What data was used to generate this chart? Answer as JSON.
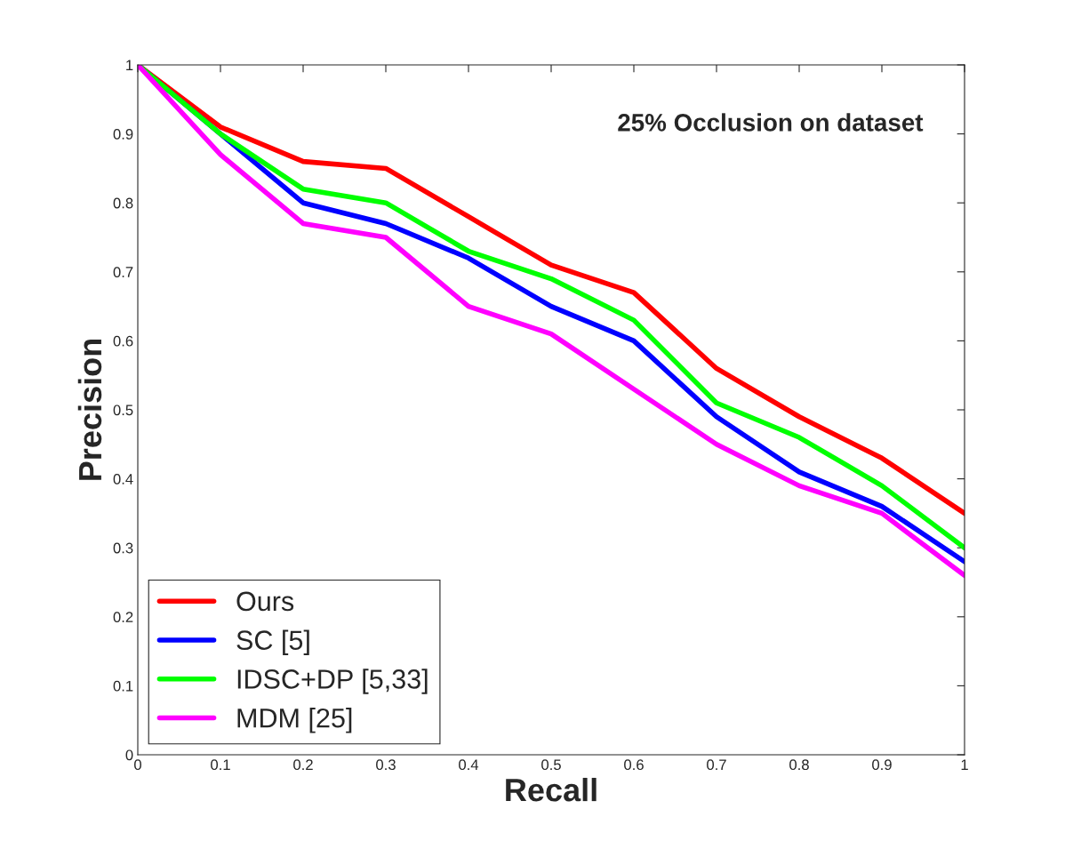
{
  "chart_data": {
    "type": "line",
    "title": "25% Occlusion on dataset",
    "xlabel": "Recall",
    "ylabel": "Precision",
    "x": [
      0,
      0.1,
      0.2,
      0.3,
      0.4,
      0.5,
      0.6,
      0.7,
      0.8,
      0.9,
      1
    ],
    "series": [
      {
        "name": "Ours",
        "color": "#ff0000",
        "values": [
          1,
          0.91,
          0.86,
          0.85,
          0.78,
          0.71,
          0.67,
          0.56,
          0.49,
          0.43,
          0.35
        ]
      },
      {
        "name": "SC [5]",
        "color": "#0000ff",
        "values": [
          1,
          0.9,
          0.8,
          0.77,
          0.72,
          0.65,
          0.6,
          0.49,
          0.41,
          0.36,
          0.28
        ]
      },
      {
        "name": "IDSC+DP [5,33]",
        "color": "#00ff00",
        "values": [
          1,
          0.9,
          0.82,
          0.8,
          0.73,
          0.69,
          0.63,
          0.51,
          0.46,
          0.39,
          0.3
        ]
      },
      {
        "name": "MDM [25]",
        "color": "#ff00ff",
        "values": [
          1,
          0.87,
          0.77,
          0.75,
          0.65,
          0.61,
          0.53,
          0.45,
          0.39,
          0.35,
          0.26
        ]
      }
    ],
    "xlim": [
      0,
      1
    ],
    "ylim": [
      0,
      1
    ],
    "xticks": [
      0,
      0.1,
      0.2,
      0.3,
      0.4,
      0.5,
      0.6,
      0.7,
      0.8,
      0.9,
      1
    ],
    "yticks": [
      0,
      0.1,
      0.2,
      0.3,
      0.4,
      0.5,
      0.6,
      0.7,
      0.8,
      0.9,
      1
    ],
    "grid": false,
    "legend": "bottom left",
    "marker": "none",
    "line_style": "solid"
  }
}
